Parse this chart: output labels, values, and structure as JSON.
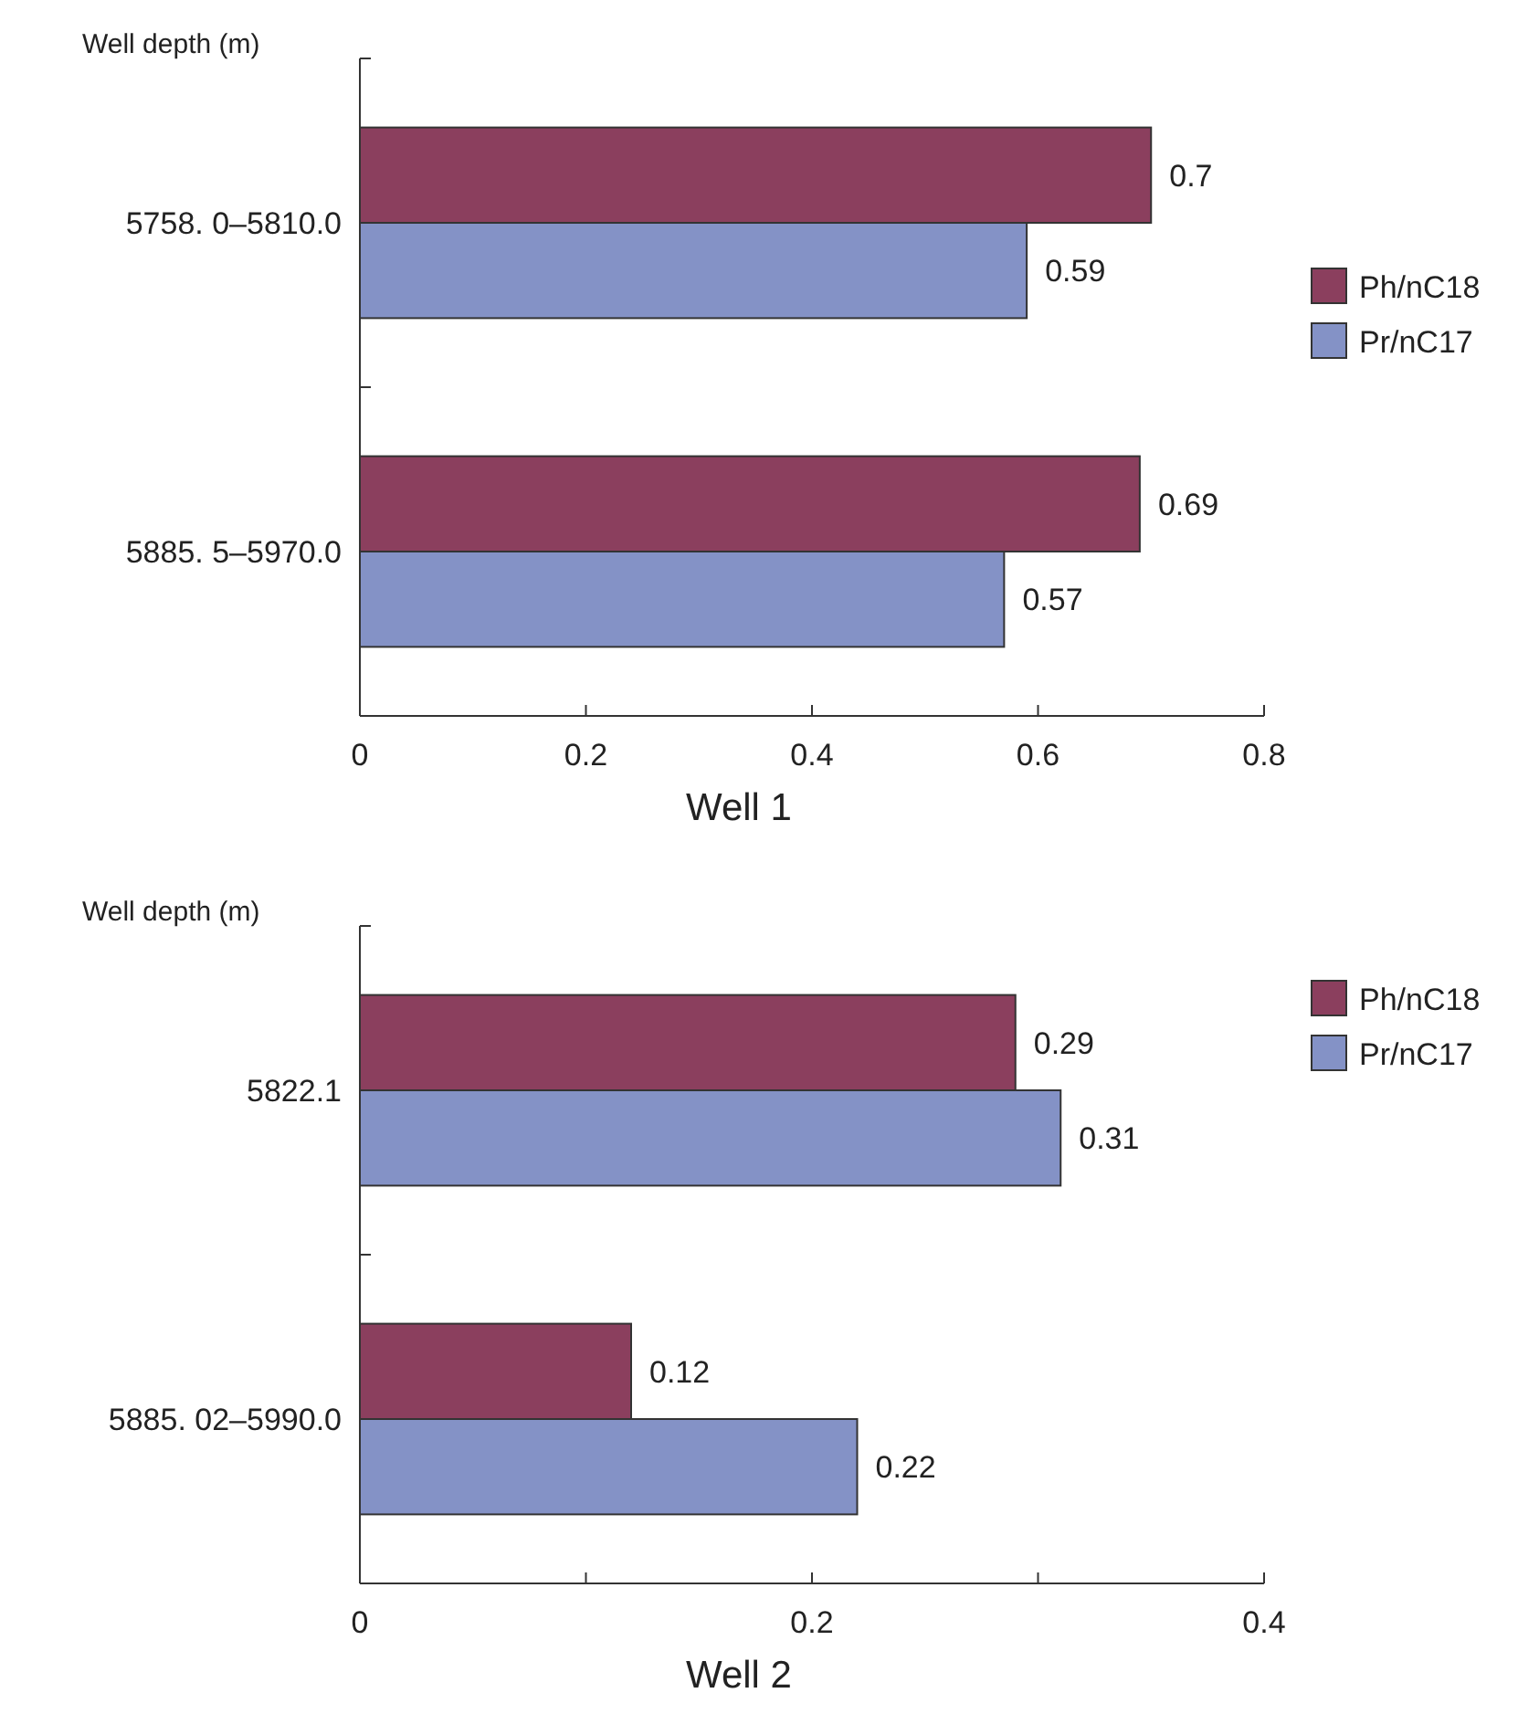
{
  "chart_data": [
    {
      "type": "bar",
      "orientation": "horizontal",
      "xlabel": "Well 1",
      "ylabel": "Well depth (m)",
      "categories": [
        "5758. 0–5810.0",
        "5885. 5–5970.0"
      ],
      "series": [
        {
          "name": "Ph/nC18",
          "color": "#8b3f5e",
          "values": [
            0.7,
            0.69
          ]
        },
        {
          "name": "Pr/nC17",
          "color": "#8492c6",
          "values": [
            0.59,
            0.57
          ]
        }
      ],
      "xlim": [
        0,
        0.8
      ],
      "xticks": [
        0,
        0.2,
        0.4,
        0.6,
        0.8
      ],
      "data_labels": true,
      "legend": "right",
      "grid": false
    },
    {
      "type": "bar",
      "orientation": "horizontal",
      "xlabel": "Well 2",
      "ylabel": "Well depth (m)",
      "categories": [
        "5822.1",
        "5885. 02–5990.0"
      ],
      "series": [
        {
          "name": "Ph/nC18",
          "color": "#8b3f5e",
          "values": [
            0.29,
            0.12
          ]
        },
        {
          "name": "Pr/nC17",
          "color": "#8492c6",
          "values": [
            0.31,
            0.22
          ]
        }
      ],
      "xlim": [
        0,
        0.4
      ],
      "xticks": [
        0,
        {
          "value": 0.1,
          "label": null
        },
        0.2,
        {
          "value": 0.3,
          "label": null
        },
        0.4
      ],
      "data_labels": true,
      "legend": "top right",
      "grid": false
    }
  ]
}
